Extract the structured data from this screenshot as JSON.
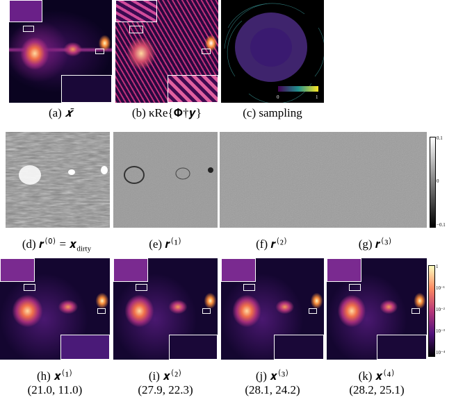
{
  "figure": {
    "row1": [
      {
        "label": "(a)",
        "math": "𝒙̄"
      },
      {
        "label": "(b)",
        "math": "κRe{𝚽†𝒚}"
      },
      {
        "label": "(c)",
        "math": "sampling"
      }
    ],
    "sampling_colorbar": [
      "0",
      "1"
    ],
    "row2": [
      {
        "label": "(d)",
        "math": "𝒓⁽⁰⁾ = 𝒙",
        "sub": "dirty"
      },
      {
        "label": "(e)",
        "math": "𝒓⁽¹⁾"
      },
      {
        "label": "(f)",
        "math": "𝒓⁽²⁾"
      },
      {
        "label": "(g)",
        "math": "𝒓⁽³⁾"
      }
    ],
    "residual_colorbar": [
      "0.1",
      "0",
      "−0.1"
    ],
    "row3": [
      {
        "label": "(h)",
        "math": "𝒙⁽¹⁾",
        "metrics": "(21.0, 11.0)"
      },
      {
        "label": "(i)",
        "math": "𝒙⁽²⁾",
        "metrics": "(27.9, 22.3)"
      },
      {
        "label": "(j)",
        "math": "𝒙⁽³⁾",
        "metrics": "(28.1, 24.2)"
      },
      {
        "label": "(k)",
        "math": "𝒙⁽⁴⁾",
        "metrics": "(28.2, 25.1)"
      }
    ],
    "image_colorbar": [
      "1",
      "10⁻¹",
      "10⁻²",
      "10⁻³",
      "10⁻⁴"
    ]
  }
}
